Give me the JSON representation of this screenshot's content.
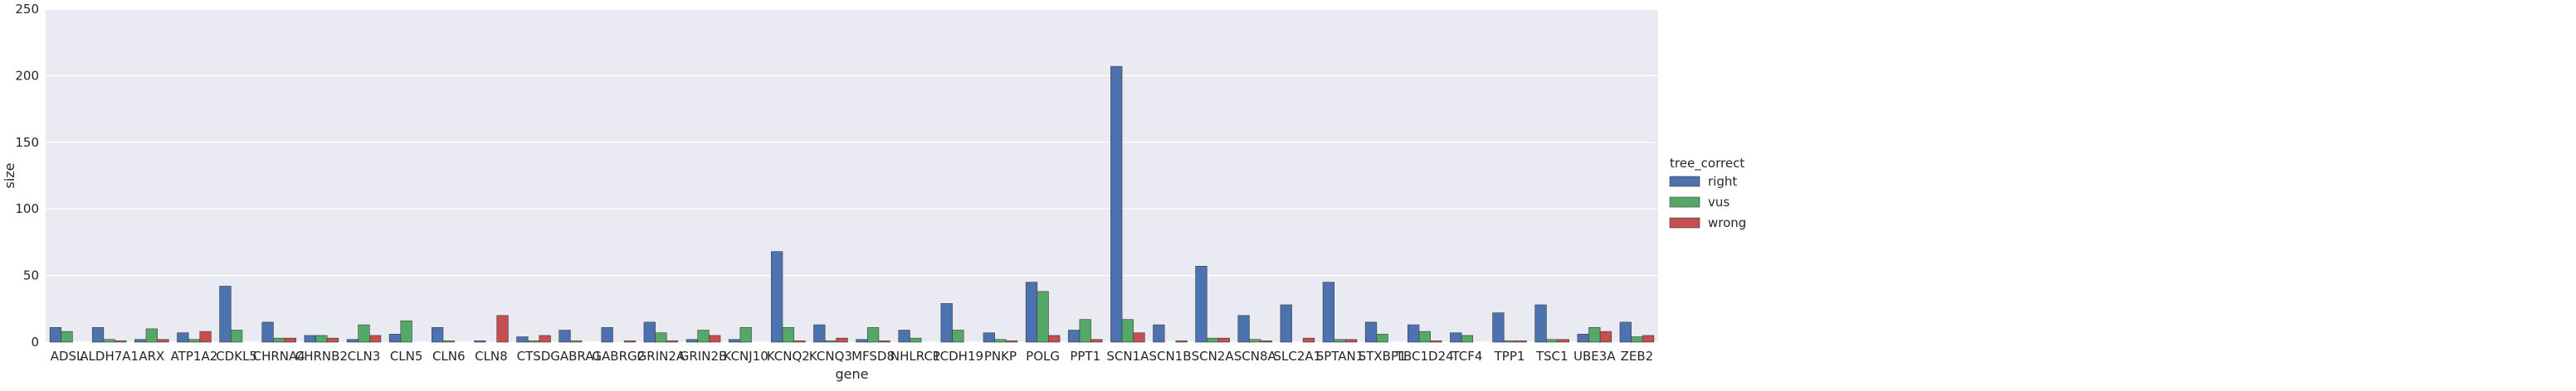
{
  "chart_data": {
    "type": "bar",
    "title": "",
    "xlabel": "gene",
    "ylabel": "size",
    "ylim": [
      0,
      250
    ],
    "yticks": [
      0,
      50,
      100,
      150,
      200,
      250
    ],
    "grid": true,
    "legend_position": "right",
    "legend_title": "tree_correct",
    "categories": [
      "ADSL",
      "ALDH7A1",
      "ARX",
      "ATP1A2",
      "CDKL5",
      "CHRNA4",
      "CHRNB2",
      "CLN3",
      "CLN5",
      "CLN6",
      "CLN8",
      "CTSD",
      "GABRA1",
      "GABRG2",
      "GRIN2A",
      "GRIN2B",
      "KCNJ10",
      "KCNQ2",
      "KCNQ3",
      "MFSD8",
      "NHLRC1",
      "PCDH19",
      "PNKP",
      "POLG",
      "PPT1",
      "SCN1A",
      "SCN1B",
      "SCN2A",
      "SCN8A",
      "SLC2A1",
      "SPTAN1",
      "STXBP1",
      "TBC1D24",
      "TCF4",
      "TPP1",
      "TSC1",
      "UBE3A",
      "ZEB2"
    ],
    "series": [
      {
        "name": "right",
        "color": "#4c72b0",
        "values": [
          11,
          11,
          2,
          7,
          42,
          15,
          5,
          2,
          6,
          11,
          1,
          4,
          9,
          11,
          15,
          2,
          2,
          68,
          13,
          2,
          9,
          29,
          7,
          45,
          9,
          207,
          13,
          57,
          20,
          28,
          45,
          15,
          13,
          7,
          22,
          28,
          6,
          15
        ]
      },
      {
        "name": "vus",
        "color": "#55a868",
        "values": [
          8,
          2,
          10,
          2,
          9,
          3,
          5,
          13,
          16,
          1,
          0,
          1,
          1,
          0,
          7,
          9,
          11,
          11,
          1,
          11,
          3,
          9,
          2,
          38,
          17,
          17,
          0,
          3,
          2,
          0,
          2,
          6,
          8,
          5,
          1,
          2,
          11,
          4
        ]
      },
      {
        "name": "wrong",
        "color": "#c44e52",
        "values": [
          0,
          1,
          2,
          8,
          0,
          3,
          3,
          5,
          0,
          0,
          20,
          5,
          0,
          1,
          1,
          5,
          0,
          1,
          3,
          1,
          0,
          0,
          1,
          5,
          2,
          7,
          1,
          3,
          1,
          3,
          2,
          0,
          1,
          0,
          1,
          2,
          8,
          5
        ]
      }
    ]
  }
}
